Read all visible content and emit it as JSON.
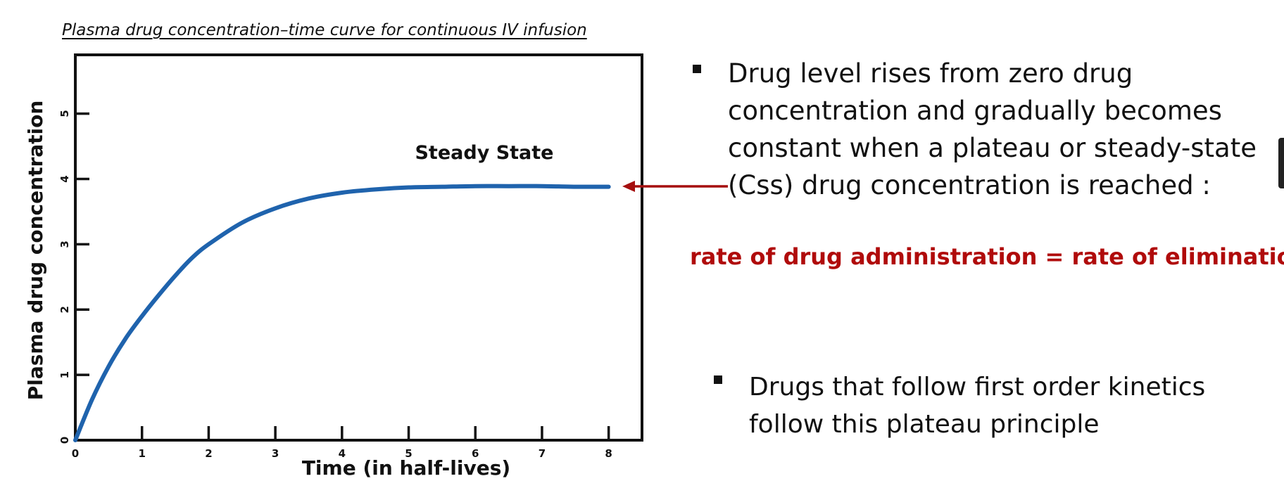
{
  "slide": {
    "title": "Plasma drug concentration–time curve for continuous IV infusion",
    "bullets": [
      "Drug level rises from zero drug concentration and gradually becomes constant when a plateau or steady-state (Css) drug concentration is reached :",
      "Drugs that follow first order kinetics follow this plateau principle"
    ],
    "equation": "rate of drug administration = rate of elimination",
    "colors": {
      "curve": "#1f63ad",
      "arrow": "#a50f0f",
      "equation": "#b00b0b"
    }
  },
  "chart_data": {
    "type": "line",
    "title": "",
    "xlabel": "Time (in half-lives)",
    "ylabel": "Plasma drug concentration",
    "xlim": [
      0,
      8.5
    ],
    "ylim": [
      0,
      5.9
    ],
    "xticks": [
      0,
      1,
      2,
      3,
      4,
      5,
      6,
      7,
      8
    ],
    "yticks": [
      0,
      1,
      2,
      3,
      4,
      5
    ],
    "grid": false,
    "annotation": "Steady State",
    "series": [
      {
        "x": [
          0,
          0.25,
          0.5,
          0.75,
          1,
          1.25,
          1.5,
          1.75,
          2,
          2.5,
          3,
          3.5,
          4,
          4.5,
          5,
          5.5,
          6,
          6.5,
          7,
          7.5,
          8
        ],
        "y": [
          0,
          0.62,
          1.13,
          1.55,
          1.9,
          2.22,
          2.52,
          2.79,
          3.0,
          3.33,
          3.55,
          3.7,
          3.79,
          3.84,
          3.87,
          3.88,
          3.89,
          3.89,
          3.89,
          3.88,
          3.88
        ]
      }
    ]
  }
}
